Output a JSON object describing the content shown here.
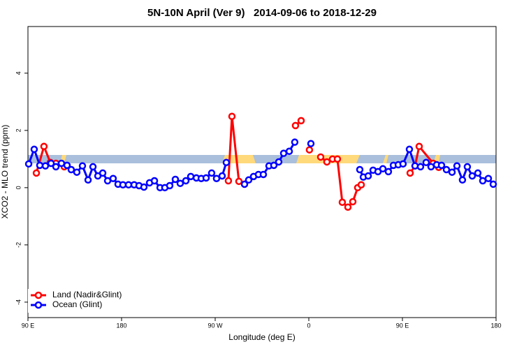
{
  "chart_data": {
    "type": "line",
    "title": "5N-10N April (Ver 9)   2014-09-06 to 2018-12-29",
    "x_label": "Longitude (deg E)",
    "y_label": "XCO2 - MLO trend (ppm)",
    "xlim": [
      90,
      540
    ],
    "ylim": [
      -4.54,
      5.63
    ],
    "xticks": [
      {
        "value": 90,
        "label": "90 E"
      },
      180,
      {
        "value": 270,
        "label": "90 W"
      },
      {
        "value": 360,
        "label": "0"
      },
      {
        "value": 450,
        "label": "90 E"
      },
      {
        "value": 540,
        "label": "180"
      }
    ],
    "yticks": [
      -4,
      -2,
      0,
      2,
      4
    ],
    "legend": "bottom-left",
    "series": [
      {
        "name": "Land (Nadir&Glint)",
        "color": "#ff0000",
        "x": [
          98.1,
          105.4,
          111.5,
          116.9,
          124.9,
          null,
          282.7,
          286.1,
          292.8,
          298.2,
          null,
          347.2,
          352.6,
          null,
          360.6,
          null,
          371.4,
          377.4,
          382.8,
          387.5,
          392.2,
          397.6,
          402.3,
          407.0,
          410.4,
          null,
          457.4,
          462.1,
          466.1,
          479.5,
          484.9
        ],
        "values": [
          0.51,
          1.44,
          0.88,
          0.85,
          0.73,
          null,
          0.24,
          2.49,
          0.22,
          0.12,
          null,
          2.17,
          2.34,
          null,
          1.32,
          null,
          1.07,
          0.9,
          1.0,
          1.0,
          -0.51,
          -0.68,
          -0.49,
          0.0,
          0.1,
          null,
          0.51,
          0.76,
          1.44,
          0.85,
          0.71
        ]
      },
      {
        "name": "Ocean (Glint)",
        "color": "#0000ff",
        "x": [
          90.7,
          96.0,
          101.4,
          106.8,
          112.2,
          116.9,
          122.2,
          127.6,
          131.6,
          137.0,
          142.4,
          147.8,
          152.5,
          157.2,
          161.9,
          166.6,
          171.9,
          176.6,
          181.3,
          186.7,
          192.1,
          196.8,
          201.5,
          206.9,
          211.6,
          217.0,
          221.6,
          226.3,
          231.7,
          236.4,
          241.8,
          246.5,
          251.9,
          256.6,
          261.3,
          266.6,
          271.3,
          276.7,
          280.7,
          null,
          298.2,
          302.2,
          306.9,
          311.6,
          316.3,
          321.7,
          326.4,
          331.1,
          335.8,
          341.2,
          346.5,
          null,
          362.0,
          null,
          409.0,
          412.4,
          417.1,
          421.8,
          426.5,
          431.2,
          436.5,
          441.3,
          446.0,
          450.6,
          456.7,
          462.1,
          467.4,
          472.8,
          477.5,
          482.9,
          487.6,
          492.3,
          497.7,
          502.4,
          507.7,
          512.4,
          517.1,
          522.5,
          527.2,
          532.6,
          537.3
        ],
        "values": [
          0.83,
          1.34,
          0.78,
          0.76,
          0.85,
          0.73,
          0.85,
          0.78,
          0.63,
          0.54,
          0.76,
          0.27,
          0.73,
          0.41,
          0.51,
          0.24,
          0.32,
          0.12,
          0.1,
          0.1,
          0.1,
          0.07,
          0.02,
          0.17,
          0.24,
          0.0,
          0.0,
          0.07,
          0.29,
          0.15,
          0.24,
          0.39,
          0.34,
          0.32,
          0.34,
          0.51,
          0.32,
          0.41,
          0.88,
          null,
          0.12,
          0.27,
          0.39,
          0.46,
          0.46,
          0.76,
          0.78,
          0.9,
          1.2,
          1.27,
          1.59,
          null,
          1.54,
          null,
          0.63,
          0.37,
          0.41,
          0.61,
          0.56,
          0.66,
          0.56,
          0.78,
          0.8,
          0.83,
          1.34,
          0.76,
          0.73,
          0.88,
          0.73,
          0.8,
          0.78,
          0.63,
          0.54,
          0.76,
          0.27,
          0.73,
          0.41,
          0.51,
          0.24,
          0.32,
          0.12
        ]
      }
    ]
  }
}
